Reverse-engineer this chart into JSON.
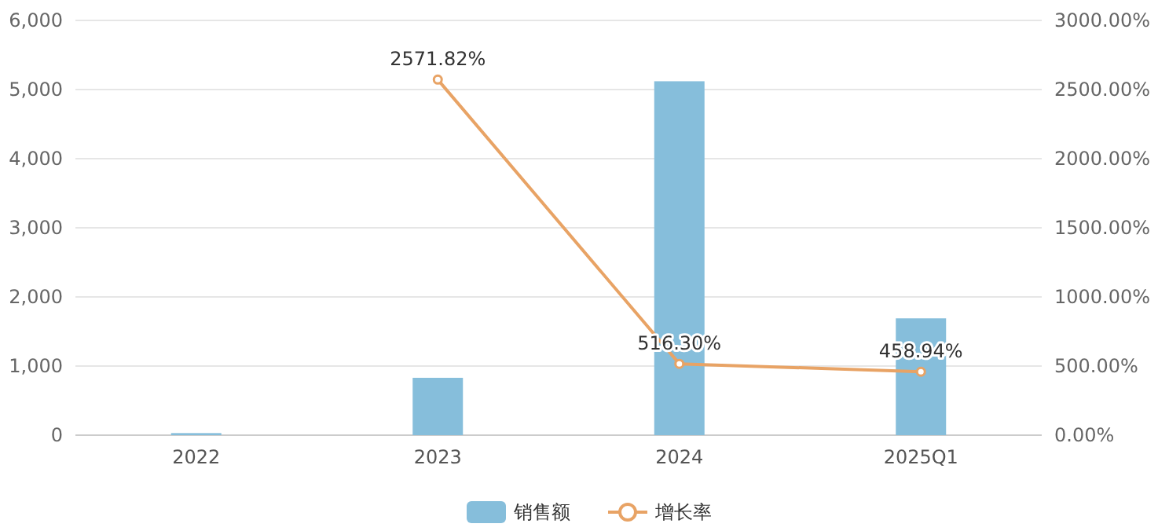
{
  "chart_data": {
    "type": "bar",
    "categories": [
      "2022",
      "2023",
      "2024",
      "2025Q1"
    ],
    "series": [
      {
        "name": "销售额",
        "color": "#86bedb",
        "values": [
          30,
          830,
          5120,
          1690
        ]
      },
      {
        "name": "增长率",
        "type": "line",
        "axis": "y2",
        "color": "#e8a365",
        "values": [
          null,
          2571.82,
          516.3,
          458.94
        ],
        "value_labels": [
          null,
          "2571.82%",
          "516.30%",
          "458.94%"
        ]
      }
    ],
    "ylim": [
      0,
      6000
    ],
    "yticks": [
      {
        "value": 0,
        "label": "0"
      },
      {
        "value": 1000,
        "label": "1,000"
      },
      {
        "value": 2000,
        "label": "2,000"
      },
      {
        "value": 3000,
        "label": "3,000"
      },
      {
        "value": 4000,
        "label": "4,000"
      },
      {
        "value": 5000,
        "label": "5,000"
      },
      {
        "value": 6000,
        "label": "6,000"
      }
    ],
    "y2lim": [
      0,
      3000
    ],
    "y2ticks": [
      {
        "value": 0,
        "label": "0.00%"
      },
      {
        "value": 500,
        "label": "500.00%"
      },
      {
        "value": 1000,
        "label": "1000.00%"
      },
      {
        "value": 1500,
        "label": "1500.00%"
      },
      {
        "value": 2000,
        "label": "2000.00%"
      },
      {
        "value": 2500,
        "label": "2500.00%"
      },
      {
        "value": 3000,
        "label": "3000.00%"
      }
    ],
    "grid": "y",
    "legend": "bottom",
    "marker": "circle",
    "line_style": "solid"
  }
}
